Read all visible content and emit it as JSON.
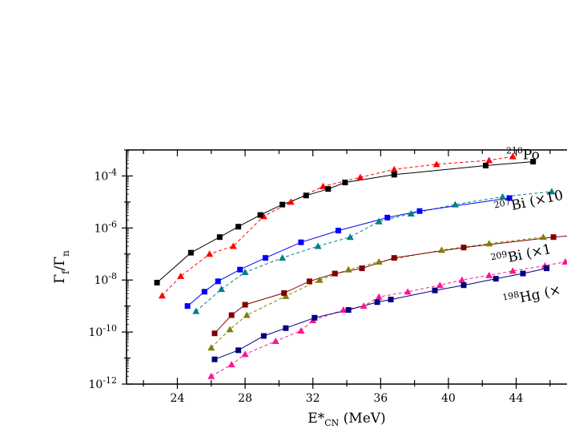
{
  "chart_data": {
    "type": "line",
    "title": "",
    "xlabel": {
      "main": "E*",
      "sub": "CN",
      "rest": " (MeV)"
    },
    "ylabel": {
      "main": "Γ",
      "sub1": "f",
      "mid": "/Γ",
      "sub2": "n"
    },
    "xlim": [
      21,
      47
    ],
    "ylim_log10": [
      -12,
      -3
    ],
    "y_scale": "log",
    "x_ticks": [
      "24",
      "28",
      "32",
      "36",
      "40",
      "44"
    ],
    "y_ticks": [
      {
        "base": "10",
        "exp": "-4"
      },
      {
        "base": "10",
        "exp": "-6"
      },
      {
        "base": "10",
        "exp": "-8"
      },
      {
        "base": "10",
        "exp": "-10"
      },
      {
        "base": "10",
        "exp": "-12"
      }
    ],
    "series": [
      {
        "label": {
          "mass": "210",
          "text": "Po"
        },
        "label_at": [
          43.4,
          -3.35
        ],
        "label_rotate": 0,
        "color_exp": "#000000",
        "color_calc": "#ff0000",
        "exp_points": [
          [
            22.8,
            -8.1
          ],
          [
            24.8,
            -6.95
          ],
          [
            26.5,
            -6.35
          ],
          [
            27.6,
            -5.95
          ],
          [
            28.9,
            -5.5
          ],
          [
            30.2,
            -5.1
          ],
          [
            31.6,
            -4.75
          ],
          [
            32.9,
            -4.5
          ],
          [
            33.9,
            -4.25
          ],
          [
            36.8,
            -3.95
          ],
          [
            42.2,
            -3.6
          ],
          [
            45.0,
            -3.45
          ]
        ],
        "calc_points": [
          [
            23.1,
            -8.6
          ],
          [
            24.2,
            -7.85
          ],
          [
            25.9,
            -7.0
          ],
          [
            27.3,
            -6.7
          ],
          [
            29.1,
            -5.55
          ],
          [
            30.7,
            -5.0
          ],
          [
            32.6,
            -4.4
          ],
          [
            34.8,
            -4.05
          ],
          [
            36.8,
            -3.75
          ],
          [
            39.3,
            -3.55
          ],
          [
            42.4,
            -3.4
          ],
          [
            43.8,
            -3.25
          ]
        ]
      },
      {
        "label": {
          "mass": "207",
          "text": "Bi (×10"
        },
        "label_at": [
          42.8,
          -5.45
        ],
        "label_rotate": -12,
        "color_exp": "#0000ff",
        "color_calc": "#008080",
        "exp_points": [
          [
            24.6,
            -9.0
          ],
          [
            25.6,
            -8.45
          ],
          [
            26.4,
            -8.05
          ],
          [
            27.7,
            -7.6
          ],
          [
            29.2,
            -7.15
          ],
          [
            31.3,
            -6.55
          ],
          [
            33.5,
            -6.1
          ],
          [
            36.4,
            -5.6
          ],
          [
            38.3,
            -5.35
          ],
          [
            43.6,
            -4.85
          ]
        ],
        "calc_points": [
          [
            25.1,
            -9.2
          ],
          [
            26.6,
            -8.35
          ],
          [
            28.0,
            -7.7
          ],
          [
            30.2,
            -7.15
          ],
          [
            32.3,
            -6.7
          ],
          [
            34.2,
            -6.35
          ],
          [
            35.9,
            -5.75
          ],
          [
            37.8,
            -5.45
          ],
          [
            40.4,
            -5.1
          ],
          [
            43.2,
            -4.8
          ],
          [
            46.1,
            -4.6
          ]
        ]
      },
      {
        "label": {
          "mass": "209",
          "text": "Bi (×1"
        },
        "label_at": [
          42.6,
          -7.45
        ],
        "label_rotate": -12,
        "color_exp": "#800000",
        "color_calc": "#808000",
        "exp_points": [
          [
            26.2,
            -10.05
          ],
          [
            27.2,
            -9.35
          ],
          [
            28.0,
            -8.95
          ],
          [
            30.3,
            -8.5
          ],
          [
            31.8,
            -8.05
          ],
          [
            33.3,
            -7.75
          ],
          [
            34.9,
            -7.55
          ],
          [
            36.8,
            -7.15
          ],
          [
            40.9,
            -6.75
          ],
          [
            46.2,
            -6.35
          ]
        ],
        "calc_points": [
          [
            26.0,
            -10.6
          ],
          [
            27.1,
            -9.9
          ],
          [
            28.1,
            -9.35
          ],
          [
            30.4,
            -8.62
          ],
          [
            32.4,
            -8.0
          ],
          [
            34.1,
            -7.6
          ],
          [
            35.9,
            -7.3
          ],
          [
            39.6,
            -6.85
          ],
          [
            42.4,
            -6.6
          ],
          [
            45.6,
            -6.35
          ]
        ],
        "trailing_segment": true
      },
      {
        "label": {
          "mass": "198",
          "text": "Hg (×"
        },
        "label_at": [
          43.3,
          -9.0
        ],
        "label_rotate": -12,
        "color_exp": "#000080",
        "color_calc": "#ff1493",
        "exp_points": [
          [
            26.2,
            -11.05
          ],
          [
            27.6,
            -10.7
          ],
          [
            29.1,
            -10.15
          ],
          [
            30.4,
            -9.85
          ],
          [
            32.1,
            -9.45
          ],
          [
            34.1,
            -9.15
          ],
          [
            35.8,
            -8.85
          ],
          [
            36.6,
            -8.75
          ],
          [
            39.2,
            -8.4
          ],
          [
            40.9,
            -8.2
          ],
          [
            42.8,
            -7.95
          ],
          [
            44.4,
            -7.75
          ],
          [
            45.8,
            -7.55
          ]
        ],
        "calc_points": [
          [
            26.0,
            -11.7
          ],
          [
            27.2,
            -11.25
          ],
          [
            28.0,
            -10.85
          ],
          [
            29.8,
            -10.35
          ],
          [
            31.3,
            -9.95
          ],
          [
            32.0,
            -9.55
          ],
          [
            33.8,
            -9.15
          ],
          [
            35.0,
            -9.0
          ],
          [
            35.9,
            -8.65
          ],
          [
            37.6,
            -8.45
          ],
          [
            39.5,
            -8.2
          ],
          [
            40.8,
            -8.0
          ],
          [
            42.4,
            -7.82
          ],
          [
            43.8,
            -7.65
          ],
          [
            45.7,
            -7.45
          ],
          [
            46.9,
            -7.3
          ]
        ]
      }
    ]
  }
}
